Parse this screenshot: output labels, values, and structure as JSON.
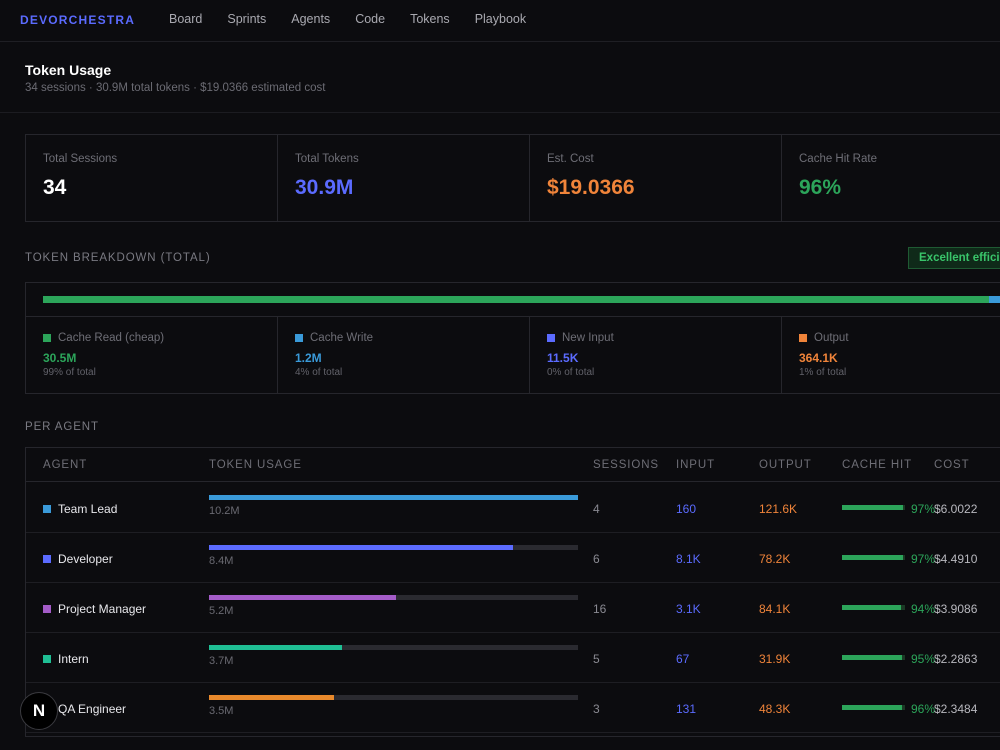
{
  "app": {
    "brand": "DEVORCHESTRA"
  },
  "nav": [
    "Board",
    "Sprints",
    "Agents",
    "Code",
    "Tokens",
    "Playbook"
  ],
  "page": {
    "title": "Token Usage",
    "subtitle": "34 sessions · 30.9M total tokens · $19.0366 estimated cost"
  },
  "stats": [
    {
      "label": "Total Sessions",
      "value": "34",
      "color": "#ffffff"
    },
    {
      "label": "Total Tokens",
      "value": "30.9M",
      "color": "#5b6bff"
    },
    {
      "label": "Est. Cost",
      "value": "$19.0366",
      "color": "#f0843a"
    },
    {
      "label": "Cache Hit Rate",
      "value": "96%",
      "color": "#2ca55a"
    }
  ],
  "breakdown": {
    "section_label": "TOKEN BREAKDOWN (TOTAL)",
    "badge": "Excellent effici",
    "items": [
      {
        "label": "Cache Read (cheap)",
        "value": "30.5M",
        "pct": "99% of total",
        "color": "#2ca55a",
        "share": 0.98
      },
      {
        "label": "Cache Write",
        "value": "1.2M",
        "pct": "4% of total",
        "color": "#3a9ad9",
        "share": 0.02
      },
      {
        "label": "New Input",
        "value": "11.5K",
        "pct": "0% of total",
        "color": "#5b6bff",
        "share": 0.0
      },
      {
        "label": "Output",
        "value": "364.1K",
        "pct": "1% of total",
        "color": "#f0843a",
        "share": 0.0
      }
    ]
  },
  "per_agent": {
    "section_label": "PER AGENT",
    "headers": {
      "agent": "AGENT",
      "usage": "TOKEN USAGE",
      "sessions": "SESSIONS",
      "input": "INPUT",
      "output": "OUTPUT",
      "cache": "CACHE HIT",
      "cost": "COST"
    },
    "rows": [
      {
        "name": "Team Lead",
        "color": "#3a9ad9",
        "usage": "10.2M",
        "usage_frac": 1.0,
        "sessions": "4",
        "input": "160",
        "output": "121.6K",
        "cache_frac": 0.97,
        "cache": "97%",
        "cost": "$6.0022"
      },
      {
        "name": "Developer",
        "color": "#5b6bff",
        "usage": "8.4M",
        "usage_frac": 0.825,
        "sessions": "6",
        "input": "8.1K",
        "output": "78.2K",
        "cache_frac": 0.97,
        "cache": "97%",
        "cost": "$4.4910"
      },
      {
        "name": "Project Manager",
        "color": "#a45cc8",
        "usage": "5.2M",
        "usage_frac": 0.507,
        "sessions": "16",
        "input": "3.1K",
        "output": "84.1K",
        "cache_frac": 0.94,
        "cache": "94%",
        "cost": "$3.9086"
      },
      {
        "name": "Intern",
        "color": "#1fbf94",
        "usage": "3.7M",
        "usage_frac": 0.361,
        "sessions": "5",
        "input": "67",
        "output": "31.9K",
        "cache_frac": 0.95,
        "cache": "95%",
        "cost": "$2.2863"
      },
      {
        "name": "QA Engineer",
        "color": "#e8892c",
        "usage": "3.5M",
        "usage_frac": 0.339,
        "sessions": "3",
        "input": "131",
        "output": "48.3K",
        "cache_frac": 0.96,
        "cache": "96%",
        "cost": "$2.3484"
      }
    ]
  },
  "next_badge": "N"
}
